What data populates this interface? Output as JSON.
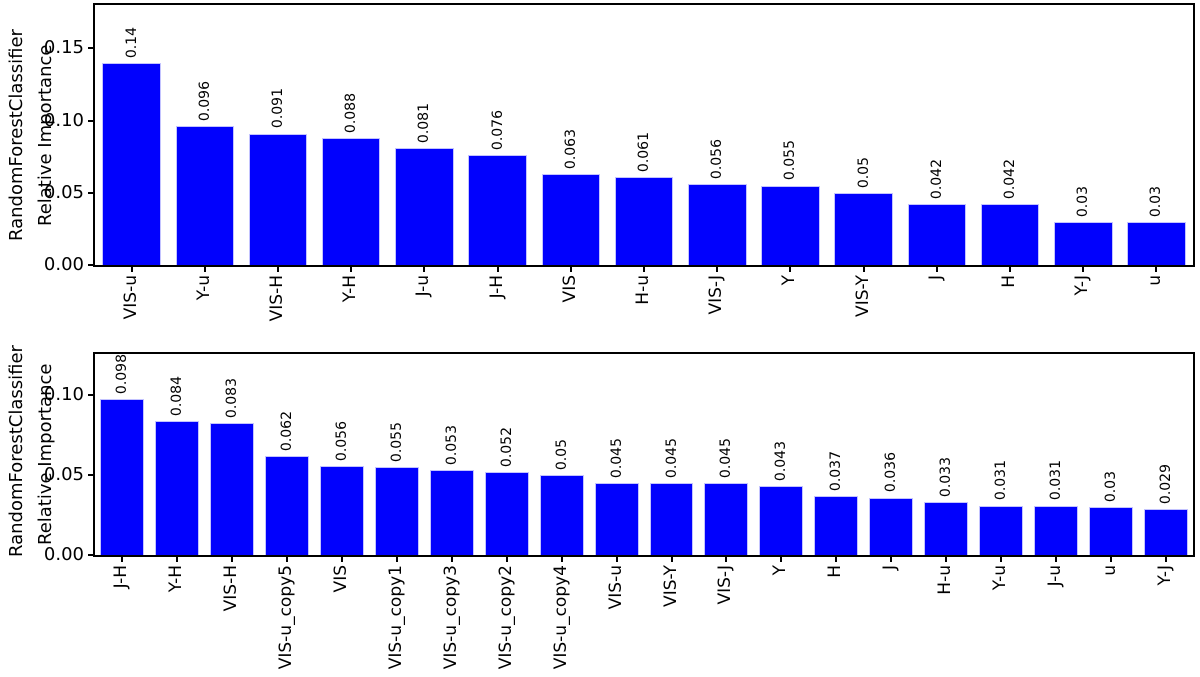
{
  "chart_data": [
    {
      "type": "bar",
      "ylabel": "RandomForestClassifier\nRelative Importance",
      "xlabel": "",
      "categories": [
        "VIS-u",
        "Y-u",
        "VIS-H",
        "Y-H",
        "J-u",
        "J-H",
        "VIS",
        "H-u",
        "VIS-J",
        "Y",
        "VIS-Y",
        "J",
        "H",
        "Y-J",
        "u"
      ],
      "values": [
        0.14,
        0.096,
        0.091,
        0.088,
        0.081,
        0.076,
        0.063,
        0.061,
        0.056,
        0.055,
        0.05,
        0.042,
        0.042,
        0.03,
        0.03
      ],
      "bar_labels": [
        "0.14",
        "0.096",
        "0.091",
        "0.088",
        "0.081",
        "0.076",
        "0.063",
        "0.061",
        "0.056",
        "0.055",
        "0.05",
        "0.042",
        "0.042",
        "0.03",
        "0.03"
      ],
      "yticks": [
        {
          "label": "0.00",
          "value": 0
        },
        {
          "label": "0.05",
          "value": 0.05
        },
        {
          "label": "0.10",
          "value": 0.1
        },
        {
          "label": "0.15",
          "value": 0.15
        }
      ],
      "ylim": [
        0,
        0.18
      ],
      "bar_color": "#0101fd",
      "grid": false,
      "legend": "none",
      "bar_label_rotation": 90,
      "xtick_rotation": 90
    },
    {
      "type": "bar",
      "ylabel": "RandomForestClassifier\nRelative Importance",
      "xlabel": "",
      "categories": [
        "J-H",
        "Y-H",
        "VIS-H",
        "VIS-u_copy5",
        "VIS",
        "VIS-u_copy1",
        "VIS-u_copy3",
        "VIS-u_copy2",
        "VIS-u_copy4",
        "VIS-u",
        "VIS-Y",
        "VIS-J",
        "Y",
        "H",
        "J",
        "H-u",
        "Y-u",
        "J-u",
        "u",
        "Y-J"
      ],
      "values": [
        0.098,
        0.084,
        0.083,
        0.062,
        0.056,
        0.055,
        0.053,
        0.052,
        0.05,
        0.045,
        0.045,
        0.045,
        0.043,
        0.037,
        0.036,
        0.033,
        0.031,
        0.031,
        0.03,
        0.029
      ],
      "bar_labels": [
        "0.098",
        "0.084",
        "0.083",
        "0.062",
        "0.056",
        "0.055",
        "0.053",
        "0.052",
        "0.05",
        "0.045",
        "0.045",
        "0.045",
        "0.043",
        "0.037",
        "0.036",
        "0.033",
        "0.031",
        "0.031",
        "0.03",
        "0.029"
      ],
      "yticks": [
        {
          "label": "0.00",
          "value": 0
        },
        {
          "label": "0.05",
          "value": 0.05
        },
        {
          "label": "0.10",
          "value": 0.1
        }
      ],
      "ylim": [
        0,
        0.126
      ],
      "bar_color": "#0101fd",
      "grid": false,
      "legend": "none",
      "bar_label_rotation": 90,
      "xtick_rotation": 90
    }
  ]
}
